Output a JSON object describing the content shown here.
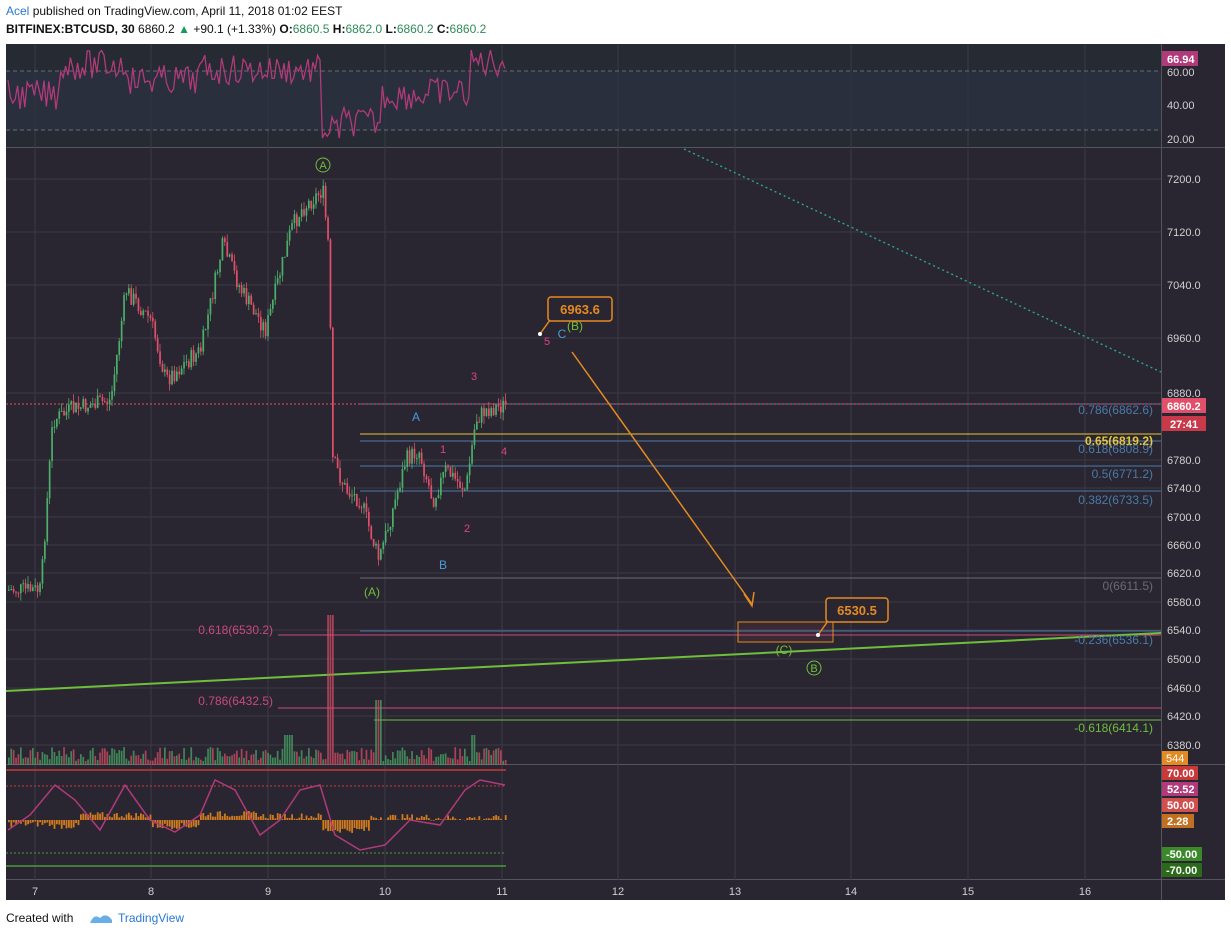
{
  "header": {
    "author": "Acel",
    "published_text": "published on TradingView.com, April 11, 2018 01:02 EEST",
    "symbol": "BITFINEX:BTCUSD, 30",
    "last": "6860.2",
    "change": "+90.1 (+1.33%)",
    "o_label": "O:",
    "o_val": "6860.5",
    "h_label": "H:",
    "h_val": "6862.0",
    "l_label": "L:",
    "l_val": "6860.2",
    "c_label": "C:",
    "c_val": "6860.2"
  },
  "footer": {
    "created_with": "Created with",
    "brand": "TradingView"
  },
  "colors": {
    "background": "#2a2631",
    "panel_bg": "#262a33",
    "grid": "#3c3c46",
    "up": "#4caf6a",
    "down": "#e0506a",
    "fib_blue": "#4a7aa8",
    "fib_yellow": "#e6c640",
    "fib_pink": "#c84a7a",
    "green_line": "#6fbf3a",
    "orange": "#e48a22",
    "rsi": "#b03a7a"
  },
  "rsi_axis": [
    "60.00",
    "40.00",
    "20.00"
  ],
  "rsi_value": "66.94",
  "price_axis": [
    "7200.0",
    "7120.0",
    "7040.0",
    "6960.0",
    "6880.0",
    "6780.0",
    "6740.0",
    "6700.0",
    "6660.0",
    "6620.0",
    "6580.0",
    "6540.0",
    "6500.0",
    "6460.0",
    "6420.0",
    "6380.0"
  ],
  "price_badges": {
    "last_price": "6860.2",
    "countdown": "27:41",
    "volume": "544"
  },
  "osc_axis": {
    "a": "70.00",
    "b": "52.52",
    "c": "50.00",
    "d": "2.28",
    "e": "-50.00",
    "f": "-70.00"
  },
  "time_axis": [
    "7",
    "8",
    "9",
    "10",
    "11",
    "12",
    "13",
    "14",
    "15",
    "16"
  ],
  "fib_levels": {
    "l786": "0.786(6862.6)",
    "l65": "0.65(6819.2)",
    "l618": "0.618(6808.9)",
    "l5": "0.5(6771.2)",
    "l382": "0.382(6733.5)",
    "l0": "0(6611.5)",
    "lm236": "-0.236(6536.1)",
    "lm618": "-0.618(6414.1)",
    "pink618": "0.618(6530.2)",
    "pink786": "0.786(6432.5)"
  },
  "callouts": {
    "top": "6963.6",
    "bottom": "6530.5"
  },
  "wave_labels": {
    "circle_a_top": "A",
    "paren_a": "(A)",
    "label_a": "A",
    "label_b": "B",
    "label_c": "C",
    "paren_b": "(B)",
    "paren_c": "(C)",
    "circle_b": "B",
    "n1": "1",
    "n2": "2",
    "n3": "3",
    "n4": "4",
    "n5": "5"
  }
}
